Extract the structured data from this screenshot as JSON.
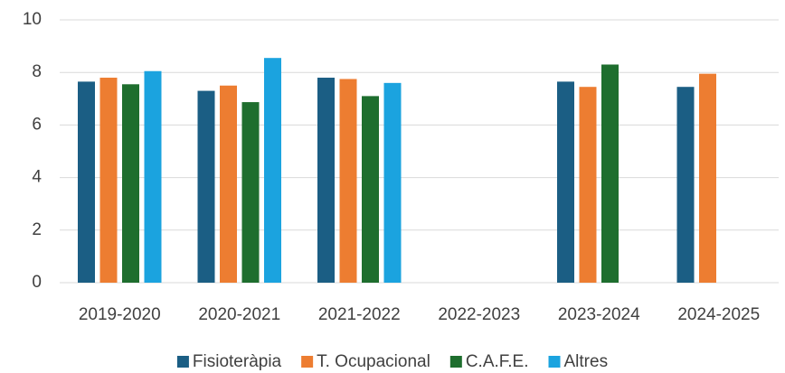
{
  "chart_data": {
    "type": "bar",
    "categories": [
      "2019-2020",
      "2020-2021",
      "2021-2022",
      "2022-2023",
      "2023-2024",
      "2024-2025"
    ],
    "series": [
      {
        "name": "Fisioteràpia",
        "color": "#1b5e84",
        "values": [
          7.65,
          7.3,
          7.8,
          null,
          7.65,
          7.45
        ]
      },
      {
        "name": "T. Ocupacional",
        "color": "#ed7d31",
        "values": [
          7.8,
          7.5,
          7.75,
          null,
          7.45,
          7.95
        ]
      },
      {
        "name": "C.A.F.E.",
        "color": "#1e6e2e",
        "values": [
          7.55,
          6.87,
          7.1,
          null,
          8.3,
          null
        ]
      },
      {
        "name": "Altres",
        "color": "#1ba3df",
        "values": [
          8.05,
          8.55,
          7.6,
          null,
          null,
          null
        ]
      }
    ],
    "ylim": [
      0,
      10
    ],
    "yticks": [
      0,
      2,
      4,
      6,
      8,
      10
    ],
    "grid": true,
    "legend": "bottom"
  }
}
